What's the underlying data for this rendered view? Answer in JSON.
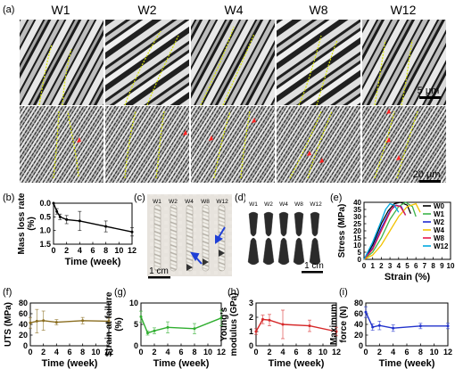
{
  "panels": {
    "a": {
      "letter": "(a)",
      "columns": [
        "W1",
        "W2",
        "W4",
        "W8",
        "W12"
      ],
      "scale_top": "5 μm",
      "scale_bottom": "20 μm"
    },
    "b": {
      "letter": "(b)"
    },
    "c": {
      "letter": "(c)",
      "labels": [
        "W1",
        "W2",
        "W4",
        "W8",
        "W12"
      ],
      "scale": "1 cm"
    },
    "d": {
      "letter": "(d)",
      "labels": [
        "W1",
        "W2",
        "W4",
        "W8",
        "W12"
      ],
      "scale": "1 cm"
    },
    "e": {
      "letter": "(e)"
    },
    "f": {
      "letter": "(f)"
    },
    "g": {
      "letter": "(g)"
    },
    "h": {
      "letter": "(h)"
    },
    "i": {
      "letter": "(i)"
    }
  },
  "colors": {
    "b": "#000000",
    "f": "#8a6d1f",
    "g": "#2fae2f",
    "h": "#d62728",
    "i": "#2233cc",
    "W0": "#000000",
    "W1": "#3cb44b",
    "W2": "#1f2bd1",
    "W4": "#f2c200",
    "W8": "#e6194b",
    "W12": "#00a8e0"
  },
  "chart_data": [
    {
      "id": "b",
      "type": "line",
      "x": [
        0,
        0.5,
        1,
        2,
        4,
        8,
        12
      ],
      "y": [
        0,
        0.3,
        0.5,
        0.6,
        0.65,
        0.85,
        1.05
      ],
      "err": [
        0,
        0.1,
        0.1,
        0.15,
        0.35,
        0.2,
        0.15
      ],
      "xlabel": "Time (week)",
      "ylabel": "Mass loss rate (%)",
      "xlim": [
        0,
        12
      ],
      "ylim": [
        0,
        1.5
      ],
      "y_inverted": true,
      "xticks": [
        "0",
        "2",
        "4",
        "6",
        "8",
        "10",
        "12"
      ],
      "yticks": [
        "0.0",
        "0.5",
        "1.0",
        "1.5"
      ]
    },
    {
      "id": "e",
      "type": "line",
      "xlabel": "Strain (%)",
      "ylabel": "Stress (MPa)",
      "xlim": [
        0,
        10
      ],
      "ylim": [
        0,
        40
      ],
      "xticks": [
        "0",
        "1",
        "2",
        "3",
        "4",
        "5",
        "6",
        "7",
        "8",
        "9",
        "10"
      ],
      "yticks": [
        "0",
        "5",
        "10",
        "15",
        "20",
        "25",
        "30",
        "35",
        "40"
      ],
      "legend": "top-right",
      "series": [
        {
          "name": "W0",
          "x": [
            0,
            1,
            2,
            2.8,
            3.5,
            4.2,
            5.0,
            5.4
          ],
          "y": [
            0,
            10,
            25,
            34,
            39,
            40,
            38,
            32
          ]
        },
        {
          "name": "W1",
          "x": [
            0,
            1,
            2,
            3,
            4,
            4.8,
            5.6,
            6.0
          ],
          "y": [
            0,
            5,
            15,
            28,
            37,
            40,
            37,
            30
          ]
        },
        {
          "name": "W2",
          "x": [
            0,
            1,
            2,
            3,
            3.7,
            4.3,
            4.8
          ],
          "y": [
            0,
            8,
            22,
            34,
            38,
            37,
            31
          ]
        },
        {
          "name": "W4",
          "x": [
            0,
            1,
            2,
            3,
            4,
            5,
            6,
            6.5
          ],
          "y": [
            0,
            3,
            10,
            20,
            30,
            37,
            39,
            33
          ]
        },
        {
          "name": "W8",
          "x": [
            0,
            1,
            2,
            3,
            3.5,
            4.2,
            4.8
          ],
          "y": [
            0,
            7,
            20,
            33,
            38,
            37,
            31
          ]
        },
        {
          "name": "W12",
          "x": [
            0,
            1,
            2,
            2.5,
            3.0,
            3.5,
            4.0
          ],
          "y": [
            0,
            12,
            27,
            35,
            39,
            38,
            33
          ]
        }
      ]
    },
    {
      "id": "f",
      "type": "line",
      "x": [
        0,
        1,
        2,
        4,
        8,
        12
      ],
      "y": [
        43,
        46,
        47,
        44,
        47,
        46
      ],
      "err": [
        10,
        22,
        18,
        5,
        6,
        6
      ],
      "xlabel": "Time (week)",
      "ylabel": "UTS (MPa)",
      "xlim": [
        0,
        12
      ],
      "ylim": [
        0,
        80
      ],
      "xticks": [
        "0",
        "2",
        "4",
        "6",
        "8",
        "10",
        "12"
      ],
      "yticks": [
        "0",
        "20",
        "40",
        "60",
        "80"
      ]
    },
    {
      "id": "g",
      "type": "line",
      "x": [
        0,
        1,
        2,
        4,
        8,
        12
      ],
      "y": [
        6.8,
        3.0,
        3.5,
        4.3,
        4.0,
        6.5
      ],
      "err": [
        1.3,
        0.5,
        0.7,
        1.3,
        1.2,
        1.8
      ],
      "xlabel": "Time (week)",
      "ylabel": "Strain at failure (%)",
      "xlim": [
        0,
        12
      ],
      "ylim": [
        0,
        10
      ],
      "xticks": [
        "0",
        "2",
        "4",
        "6",
        "8",
        "10",
        "12"
      ],
      "yticks": [
        "0",
        "5",
        "10"
      ]
    },
    {
      "id": "h",
      "type": "line",
      "x": [
        0,
        1,
        2,
        4,
        8,
        12
      ],
      "y": [
        1.0,
        1.85,
        1.8,
        1.5,
        1.4,
        1.0
      ],
      "err": [
        0.2,
        0.3,
        0.4,
        1.0,
        0.4,
        0.3
      ],
      "xlabel": "Time (week)",
      "ylabel": "Young's modulus (GPa)",
      "xlim": [
        0,
        12
      ],
      "ylim": [
        0,
        3
      ],
      "xticks": [
        "0",
        "2",
        "4",
        "6",
        "8",
        "10",
        "12"
      ],
      "yticks": [
        "0",
        "1",
        "2",
        "3"
      ]
    },
    {
      "id": "i",
      "type": "line",
      "x": [
        0,
        1,
        2,
        4,
        8,
        12
      ],
      "y": [
        63,
        35,
        38,
        33,
        37,
        37
      ],
      "err": [
        10,
        6,
        8,
        6,
        5,
        5
      ],
      "xlabel": "Time (week)",
      "ylabel": "Maximum force (N)",
      "xlim": [
        0,
        12
      ],
      "ylim": [
        0,
        80
      ],
      "xticks": [
        "0",
        "2",
        "4",
        "6",
        "8",
        "10",
        "12"
      ],
      "yticks": [
        "0",
        "20",
        "40",
        "60",
        "80"
      ]
    }
  ]
}
